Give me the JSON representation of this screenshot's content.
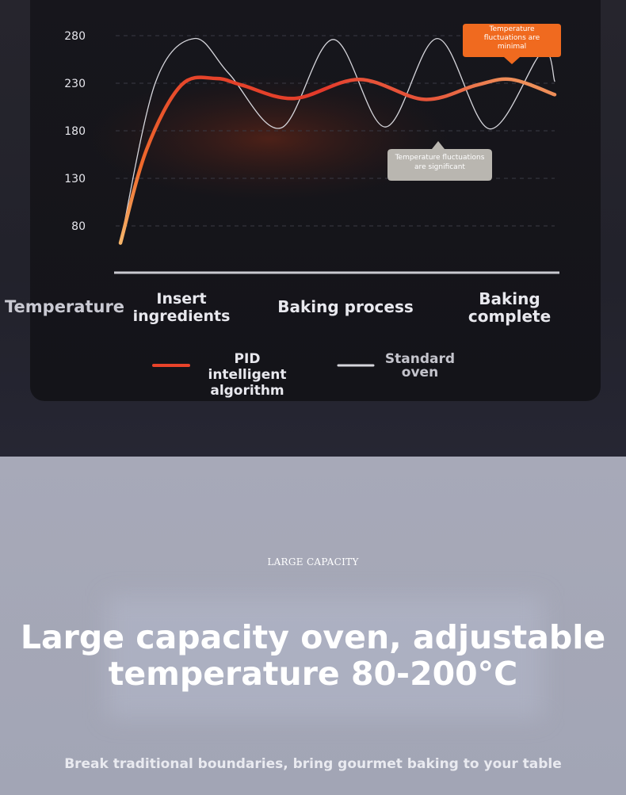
{
  "colors": {
    "pid": "#e8432a",
    "pid_end": "#f3a356",
    "standard": "#d6d6dc",
    "bubble_pid": "#f06a1f",
    "bubble_std": "#b9b6b0"
  },
  "chart_data": {
    "type": "line",
    "y_ticks": [
      280,
      230,
      180,
      130,
      80
    ],
    "ylim": [
      80,
      280
    ],
    "grid": true,
    "x_phases": [
      "Insert ingredients",
      "Baking process",
      "Baking complete"
    ],
    "row_label": "Temperature",
    "series": [
      {
        "name": "PID intelligent algorithm",
        "x": [
          0,
          0.06,
          0.14,
          0.22,
          0.28,
          0.4,
          0.55,
          0.7,
          0.82,
          0.9,
          1.0
        ],
        "values": [
          62,
          160,
          228,
          235,
          228,
          214,
          234,
          213,
          228,
          234,
          218
        ]
      },
      {
        "name": "Standard oven",
        "x": [
          0,
          0.08,
          0.17,
          0.25,
          0.37,
          0.49,
          0.61,
          0.73,
          0.85,
          0.97,
          1.0
        ],
        "values": [
          62,
          230,
          277,
          240,
          183,
          276,
          184,
          277,
          182,
          262,
          232
        ]
      }
    ],
    "annotations": [
      {
        "text": "Temperature fluctuations are minimal",
        "series": "PID intelligent algorithm"
      },
      {
        "text": "Temperature fluctuations are significant",
        "series": "Standard oven"
      }
    ]
  },
  "labels": {
    "temperature": "Temperature",
    "phase1": "Insert ingredients",
    "phase2": "Baking process",
    "phase3": "Baking complete",
    "legend_pid": "PID intelligent algorithm",
    "legend_std": "Standard oven",
    "bubble_pid": "Temperature fluctuations are minimal",
    "bubble_std": "Temperature fluctuations are significant"
  },
  "promo": {
    "kicker": "LARGE CAPACITY",
    "headline": "Large capacity oven, adjustable temperature 80-200°C",
    "subheadline": "Break traditional boundaries, bring gourmet baking to your table"
  }
}
